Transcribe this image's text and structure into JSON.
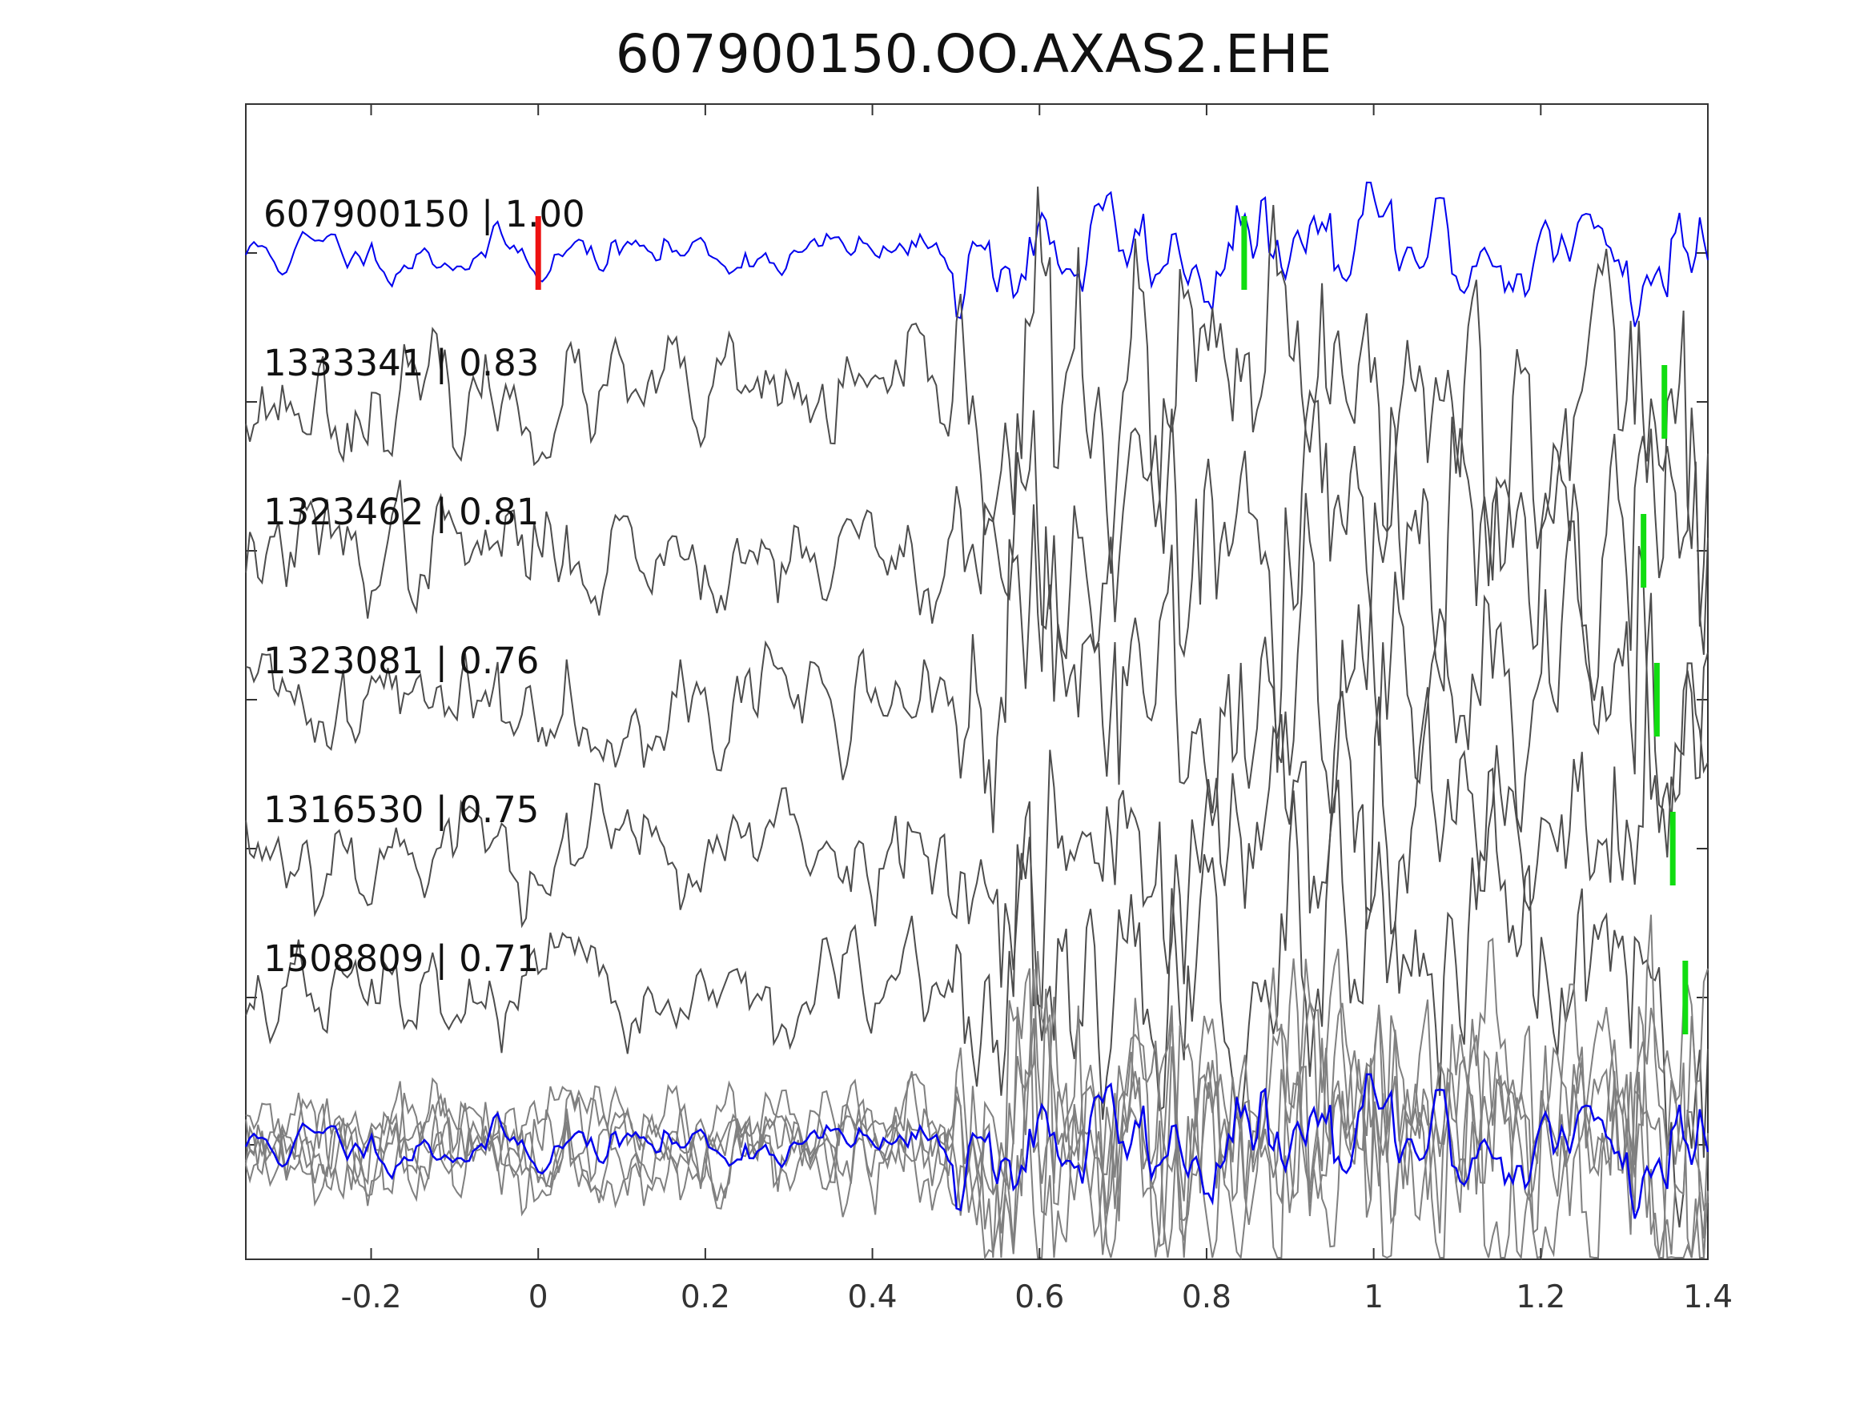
{
  "chart_data": {
    "type": "line",
    "title": "607900150.OO.AXAS2.EHE",
    "xlabel": "",
    "ylabel": "",
    "xlim": [
      -0.35,
      1.4
    ],
    "x_ticks": [
      -0.2,
      0,
      0.2,
      0.4,
      0.6,
      0.8,
      1,
      1.2,
      1.4
    ],
    "x_tick_labels": [
      "-0.2",
      "0",
      "0.2",
      "0.4",
      "0.6",
      "0.8",
      "1",
      "1.2",
      "1.4"
    ],
    "y_ticks_visible": false,
    "grid": false,
    "legend": "none",
    "colors": {
      "template": "#0000ee",
      "match": "#4d4d4d",
      "stack": "#808080",
      "reference_pick": "#ee1111",
      "match_pick": "#11dd11",
      "axes": "#333333"
    },
    "series": [
      {
        "name": "607900150 | 1.00",
        "role": "template",
        "seed": 11,
        "amplitude": 0.5,
        "color": "#0000ee",
        "picks": [
          {
            "x": 0.0,
            "color": "#ee1111"
          },
          {
            "x": 0.845,
            "color": "#11dd11"
          }
        ]
      },
      {
        "name": "1333341 | 0.83",
        "role": "match",
        "seed": 23,
        "amplitude": 1.0,
        "color": "#4d4d4d",
        "picks": [
          {
            "x": 1.348,
            "color": "#11dd11"
          }
        ]
      },
      {
        "name": "1323462 | 0.81",
        "role": "match",
        "seed": 37,
        "amplitude": 1.0,
        "color": "#4d4d4d",
        "picks": [
          {
            "x": 1.323,
            "color": "#11dd11"
          }
        ]
      },
      {
        "name": "1323081 | 0.76",
        "role": "match",
        "seed": 41,
        "amplitude": 1.0,
        "color": "#4d4d4d",
        "picks": [
          {
            "x": 1.339,
            "color": "#11dd11"
          }
        ]
      },
      {
        "name": "1316530 | 0.75",
        "role": "match",
        "seed": 53,
        "amplitude": 1.0,
        "color": "#4d4d4d",
        "picks": [
          {
            "x": 1.358,
            "color": "#11dd11"
          }
        ]
      },
      {
        "name": "1508809 | 0.71",
        "role": "match",
        "seed": 67,
        "amplitude": 0.9,
        "color": "#4d4d4d",
        "picks": [
          {
            "x": 1.373,
            "color": "#11dd11"
          }
        ]
      }
    ],
    "stack": {
      "role": "overlay of all traces",
      "template_color": "#0000ee",
      "match_color": "#808080"
    }
  }
}
